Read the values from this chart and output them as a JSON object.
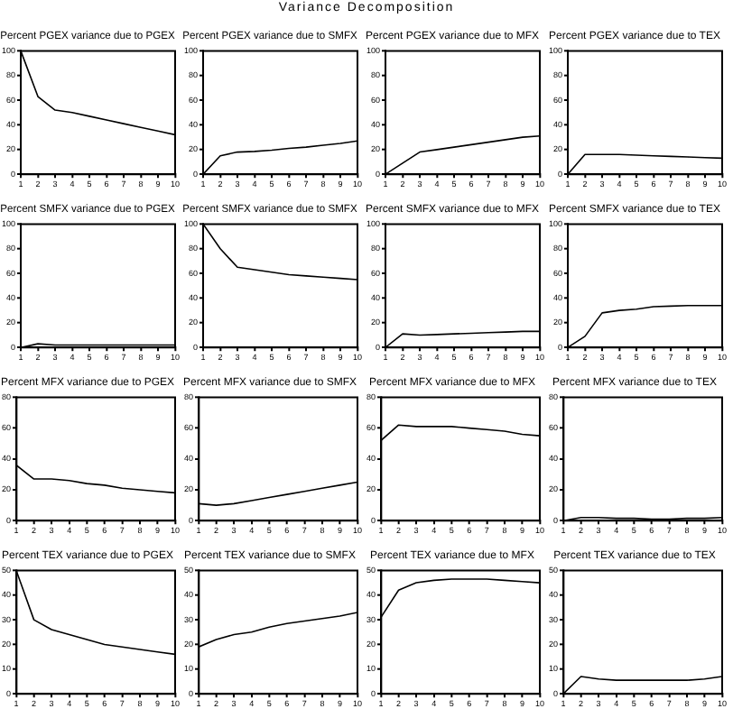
{
  "chart_data": [
    {
      "type": "line",
      "annotations": [
        "Variance Decomposition"
      ],
      "title": "Percent PGEX variance due to PGEX",
      "x": [
        1,
        2,
        3,
        4,
        5,
        6,
        7,
        8,
        9,
        10
      ],
      "xlim": [
        1,
        10
      ],
      "xticks": [
        1,
        2,
        3,
        4,
        5,
        6,
        7,
        8,
        9,
        10
      ],
      "ylim": [
        0,
        100
      ],
      "yticks": [
        0,
        20,
        40,
        60,
        80,
        100
      ],
      "color": "#000000",
      "values": [
        100,
        63,
        52,
        50,
        47,
        44,
        41,
        38,
        35,
        32
      ]
    },
    {
      "type": "line",
      "title": "Percent PGEX variance due to SMFX",
      "x": [
        1,
        2,
        3,
        4,
        5,
        6,
        7,
        8,
        9,
        10
      ],
      "xlim": [
        1,
        10
      ],
      "xticks": [
        1,
        2,
        3,
        4,
        5,
        6,
        7,
        8,
        9,
        10
      ],
      "ylim": [
        0,
        100
      ],
      "yticks": [
        0,
        20,
        40,
        60,
        80,
        100
      ],
      "color": "#000000",
      "values": [
        0,
        15,
        18,
        18.5,
        19.5,
        21,
        22,
        23.5,
        25,
        27
      ]
    },
    {
      "type": "line",
      "title": "Percent PGEX variance due to MFX",
      "x": [
        1,
        2,
        3,
        4,
        5,
        6,
        7,
        8,
        9,
        10
      ],
      "xlim": [
        1,
        10
      ],
      "xticks": [
        1,
        2,
        3,
        4,
        5,
        6,
        7,
        8,
        9,
        10
      ],
      "ylim": [
        0,
        100
      ],
      "yticks": [
        0,
        20,
        40,
        60,
        80,
        100
      ],
      "color": "#000000",
      "values": [
        0,
        9,
        18,
        20,
        22,
        24,
        26,
        28,
        30,
        31
      ]
    },
    {
      "type": "line",
      "title": "Percent PGEX variance due to TEX",
      "x": [
        1,
        2,
        3,
        4,
        5,
        6,
        7,
        8,
        9,
        10
      ],
      "xlim": [
        1,
        10
      ],
      "xticks": [
        1,
        2,
        3,
        4,
        5,
        6,
        7,
        8,
        9,
        10
      ],
      "ylim": [
        0,
        100
      ],
      "yticks": [
        0,
        20,
        40,
        60,
        80,
        100
      ],
      "color": "#000000",
      "values": [
        0,
        16,
        16,
        16,
        15.5,
        15,
        14.5,
        14,
        13.5,
        13
      ]
    },
    {
      "type": "line",
      "title": "Percent SMFX variance due to PGEX",
      "x": [
        1,
        2,
        3,
        4,
        5,
        6,
        7,
        8,
        9,
        10
      ],
      "xlim": [
        1,
        10
      ],
      "xticks": [
        1,
        2,
        3,
        4,
        5,
        6,
        7,
        8,
        9,
        10
      ],
      "ylim": [
        0,
        100
      ],
      "yticks": [
        0,
        20,
        40,
        60,
        80,
        100
      ],
      "color": "#000000",
      "values": [
        0,
        3,
        2,
        2,
        2,
        2,
        2,
        2,
        2,
        2
      ]
    },
    {
      "type": "line",
      "title": "Percent SMFX variance due to SMFX",
      "x": [
        1,
        2,
        3,
        4,
        5,
        6,
        7,
        8,
        9,
        10
      ],
      "xlim": [
        1,
        10
      ],
      "xticks": [
        1,
        2,
        3,
        4,
        5,
        6,
        7,
        8,
        9,
        10
      ],
      "ylim": [
        0,
        100
      ],
      "yticks": [
        0,
        20,
        40,
        60,
        80,
        100
      ],
      "color": "#000000",
      "values": [
        100,
        80,
        65,
        63,
        61,
        59,
        58,
        57,
        56,
        55
      ]
    },
    {
      "type": "line",
      "title": "Percent SMFX variance due to MFX",
      "x": [
        1,
        2,
        3,
        4,
        5,
        6,
        7,
        8,
        9,
        10
      ],
      "xlim": [
        1,
        10
      ],
      "xticks": [
        1,
        2,
        3,
        4,
        5,
        6,
        7,
        8,
        9,
        10
      ],
      "ylim": [
        0,
        100
      ],
      "yticks": [
        0,
        20,
        40,
        60,
        80,
        100
      ],
      "color": "#000000",
      "values": [
        0,
        11,
        10,
        10.5,
        11,
        11.5,
        12,
        12.5,
        13,
        13
      ]
    },
    {
      "type": "line",
      "title": "Percent SMFX variance due to TEX",
      "x": [
        1,
        2,
        3,
        4,
        5,
        6,
        7,
        8,
        9,
        10
      ],
      "xlim": [
        1,
        10
      ],
      "xticks": [
        1,
        2,
        3,
        4,
        5,
        6,
        7,
        8,
        9,
        10
      ],
      "ylim": [
        0,
        100
      ],
      "yticks": [
        0,
        20,
        40,
        60,
        80,
        100
      ],
      "color": "#000000",
      "values": [
        0,
        9,
        28,
        30,
        31,
        33,
        33.5,
        34,
        34,
        34
      ]
    },
    {
      "type": "line",
      "title": "Percent MFX variance due to PGEX",
      "x": [
        1,
        2,
        3,
        4,
        5,
        6,
        7,
        8,
        9,
        10
      ],
      "xlim": [
        1,
        10
      ],
      "xticks": [
        1,
        2,
        3,
        4,
        5,
        6,
        7,
        8,
        9,
        10
      ],
      "ylim": [
        0,
        80
      ],
      "yticks": [
        0,
        20,
        40,
        60,
        80
      ],
      "color": "#000000",
      "values": [
        36,
        27,
        27,
        26,
        24,
        23,
        21,
        20,
        19,
        18
      ]
    },
    {
      "type": "line",
      "title": "Percent MFX variance due to SMFX",
      "x": [
        1,
        2,
        3,
        4,
        5,
        6,
        7,
        8,
        9,
        10
      ],
      "xlim": [
        1,
        10
      ],
      "xticks": [
        1,
        2,
        3,
        4,
        5,
        6,
        7,
        8,
        9,
        10
      ],
      "ylim": [
        0,
        80
      ],
      "yticks": [
        0,
        20,
        40,
        60,
        80
      ],
      "color": "#000000",
      "values": [
        11,
        10,
        11,
        13,
        15,
        17,
        19,
        21,
        23,
        25
      ]
    },
    {
      "type": "line",
      "title": "Percent MFX variance due to MFX",
      "x": [
        1,
        2,
        3,
        4,
        5,
        6,
        7,
        8,
        9,
        10
      ],
      "xlim": [
        1,
        10
      ],
      "xticks": [
        1,
        2,
        3,
        4,
        5,
        6,
        7,
        8,
        9,
        10
      ],
      "ylim": [
        0,
        80
      ],
      "yticks": [
        0,
        20,
        40,
        60,
        80
      ],
      "color": "#000000",
      "values": [
        52,
        62,
        61,
        61,
        61,
        60,
        59,
        58,
        56,
        55
      ]
    },
    {
      "type": "line",
      "title": "Percent MFX variance due to TEX",
      "x": [
        1,
        2,
        3,
        4,
        5,
        6,
        7,
        8,
        9,
        10
      ],
      "xlim": [
        1,
        10
      ],
      "xticks": [
        1,
        2,
        3,
        4,
        5,
        6,
        7,
        8,
        9,
        10
      ],
      "ylim": [
        0,
        80
      ],
      "yticks": [
        0,
        20,
        40,
        60,
        80
      ],
      "color": "#000000",
      "values": [
        0,
        2,
        2,
        1.5,
        1.5,
        1,
        1,
        1.5,
        1.5,
        2
      ]
    },
    {
      "type": "line",
      "title": "Percent TEX variance due to PGEX",
      "x": [
        1,
        2,
        3,
        4,
        5,
        6,
        7,
        8,
        9,
        10
      ],
      "xlim": [
        1,
        10
      ],
      "xticks": [
        1,
        2,
        3,
        4,
        5,
        6,
        7,
        8,
        9,
        10
      ],
      "ylim": [
        0,
        50
      ],
      "yticks": [
        0,
        10,
        20,
        30,
        40,
        50
      ],
      "color": "#000000",
      "values": [
        50,
        30,
        26,
        24,
        22,
        20,
        19,
        18,
        17,
        16
      ]
    },
    {
      "type": "line",
      "title": "Percent TEX variance due to SMFX",
      "x": [
        1,
        2,
        3,
        4,
        5,
        6,
        7,
        8,
        9,
        10
      ],
      "xlim": [
        1,
        10
      ],
      "xticks": [
        1,
        2,
        3,
        4,
        5,
        6,
        7,
        8,
        9,
        10
      ],
      "ylim": [
        0,
        50
      ],
      "yticks": [
        0,
        10,
        20,
        30,
        40,
        50
      ],
      "color": "#000000",
      "values": [
        19,
        22,
        24,
        25,
        27,
        28.5,
        29.5,
        30.5,
        31.5,
        33
      ]
    },
    {
      "type": "line",
      "title": "Percent TEX variance due to MFX",
      "x": [
        1,
        2,
        3,
        4,
        5,
        6,
        7,
        8,
        9,
        10
      ],
      "xlim": [
        1,
        10
      ],
      "xticks": [
        1,
        2,
        3,
        4,
        5,
        6,
        7,
        8,
        9,
        10
      ],
      "ylim": [
        0,
        50
      ],
      "yticks": [
        0,
        10,
        20,
        30,
        40,
        50
      ],
      "color": "#000000",
      "values": [
        31,
        42,
        45,
        46,
        46.5,
        46.5,
        46.5,
        46,
        45.5,
        45
      ]
    },
    {
      "type": "line",
      "title": "Percent TEX variance due to TEX",
      "x": [
        1,
        2,
        3,
        4,
        5,
        6,
        7,
        8,
        9,
        10
      ],
      "xlim": [
        1,
        10
      ],
      "xticks": [
        1,
        2,
        3,
        4,
        5,
        6,
        7,
        8,
        9,
        10
      ],
      "ylim": [
        0,
        50
      ],
      "yticks": [
        0,
        10,
        20,
        30,
        40,
        50
      ],
      "color": "#000000",
      "values": [
        0,
        7,
        6,
        5.5,
        5.5,
        5.5,
        5.5,
        5.5,
        6,
        7
      ]
    }
  ]
}
